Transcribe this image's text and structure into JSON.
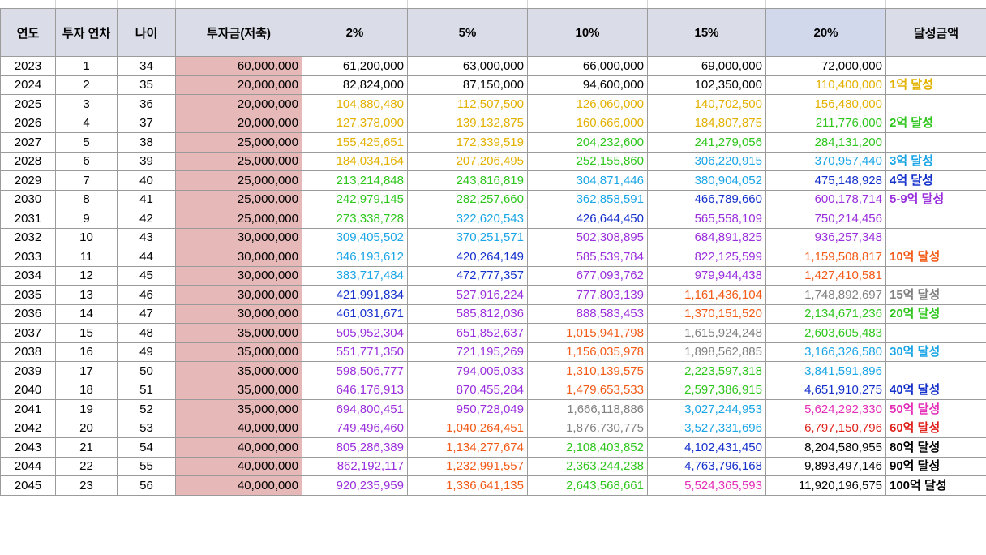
{
  "headers": [
    "연도",
    "투자 연차",
    "나이",
    "투자금(저축)",
    "2%",
    "5%",
    "10%",
    "15%",
    "20%",
    "달성금액"
  ],
  "colors": {
    "black": "#000000",
    "yellow": "#e3b100",
    "green": "#2fc61e",
    "sky": "#1aa5e6",
    "blue": "#1430cc",
    "purple": "#9a2fdc",
    "orange": "#f25a17",
    "gray": "#808080",
    "pink": "#e32fb8",
    "red": "#e0201a",
    "invest_bg": "#e6b8b7",
    "header_bg": "#dadde8"
  },
  "rows": [
    {
      "year": "2023",
      "n": "1",
      "age": "34",
      "inv": "60,000,000",
      "v": [
        "61,200,000",
        "63,000,000",
        "66,000,000",
        "69,000,000",
        "72,000,000"
      ],
      "c": [
        "black",
        "black",
        "black",
        "black",
        "black"
      ],
      "note": "",
      "nc": "black"
    },
    {
      "year": "2024",
      "n": "2",
      "age": "35",
      "inv": "20,000,000",
      "v": [
        "82,824,000",
        "87,150,000",
        "94,600,000",
        "102,350,000",
        "110,400,000"
      ],
      "c": [
        "black",
        "black",
        "black",
        "black",
        "yellow"
      ],
      "note": "1억 달성",
      "nc": "yellow"
    },
    {
      "year": "2025",
      "n": "3",
      "age": "36",
      "inv": "20,000,000",
      "v": [
        "104,880,480",
        "112,507,500",
        "126,060,000",
        "140,702,500",
        "156,480,000"
      ],
      "c": [
        "yellow",
        "yellow",
        "yellow",
        "yellow",
        "yellow"
      ],
      "note": "",
      "nc": "black"
    },
    {
      "year": "2026",
      "n": "4",
      "age": "37",
      "inv": "20,000,000",
      "v": [
        "127,378,090",
        "139,132,875",
        "160,666,000",
        "184,807,875",
        "211,776,000"
      ],
      "c": [
        "yellow",
        "yellow",
        "yellow",
        "yellow",
        "green"
      ],
      "note": "2억 달성",
      "nc": "green"
    },
    {
      "year": "2027",
      "n": "5",
      "age": "38",
      "inv": "25,000,000",
      "v": [
        "155,425,651",
        "172,339,519",
        "204,232,600",
        "241,279,056",
        "284,131,200"
      ],
      "c": [
        "yellow",
        "yellow",
        "green",
        "green",
        "green"
      ],
      "note": "",
      "nc": "black"
    },
    {
      "year": "2028",
      "n": "6",
      "age": "39",
      "inv": "25,000,000",
      "v": [
        "184,034,164",
        "207,206,495",
        "252,155,860",
        "306,220,915",
        "370,957,440"
      ],
      "c": [
        "yellow",
        "yellow",
        "green",
        "sky",
        "sky"
      ],
      "note": "3억 달성",
      "nc": "sky"
    },
    {
      "year": "2029",
      "n": "7",
      "age": "40",
      "inv": "25,000,000",
      "v": [
        "213,214,848",
        "243,816,819",
        "304,871,446",
        "380,904,052",
        "475,148,928"
      ],
      "c": [
        "green",
        "green",
        "sky",
        "sky",
        "blue"
      ],
      "note": "4억 달성",
      "nc": "blue"
    },
    {
      "year": "2030",
      "n": "8",
      "age": "41",
      "inv": "25,000,000",
      "v": [
        "242,979,145",
        "282,257,660",
        "362,858,591",
        "466,789,660",
        "600,178,714"
      ],
      "c": [
        "green",
        "green",
        "sky",
        "blue",
        "purple"
      ],
      "note": "5-9억 달성",
      "nc": "purple"
    },
    {
      "year": "2031",
      "n": "9",
      "age": "42",
      "inv": "25,000,000",
      "v": [
        "273,338,728",
        "322,620,543",
        "426,644,450",
        "565,558,109",
        "750,214,456"
      ],
      "c": [
        "green",
        "sky",
        "blue",
        "purple",
        "purple"
      ],
      "note": "",
      "nc": "black"
    },
    {
      "year": "2032",
      "n": "10",
      "age": "43",
      "inv": "30,000,000",
      "v": [
        "309,405,502",
        "370,251,571",
        "502,308,895",
        "684,891,825",
        "936,257,348"
      ],
      "c": [
        "sky",
        "sky",
        "purple",
        "purple",
        "purple"
      ],
      "note": "",
      "nc": "black"
    },
    {
      "year": "2033",
      "n": "11",
      "age": "44",
      "inv": "30,000,000",
      "v": [
        "346,193,612",
        "420,264,149",
        "585,539,784",
        "822,125,599",
        "1,159,508,817"
      ],
      "c": [
        "sky",
        "blue",
        "purple",
        "purple",
        "orange"
      ],
      "note": "10억 달성",
      "nc": "orange"
    },
    {
      "year": "2034",
      "n": "12",
      "age": "45",
      "inv": "30,000,000",
      "v": [
        "383,717,484",
        "472,777,357",
        "677,093,762",
        "979,944,438",
        "1,427,410,581"
      ],
      "c": [
        "sky",
        "blue",
        "purple",
        "purple",
        "orange"
      ],
      "note": "",
      "nc": "black"
    },
    {
      "year": "2035",
      "n": "13",
      "age": "46",
      "inv": "30,000,000",
      "v": [
        "421,991,834",
        "527,916,224",
        "777,803,139",
        "1,161,436,104",
        "1,748,892,697"
      ],
      "c": [
        "blue",
        "purple",
        "purple",
        "orange",
        "gray"
      ],
      "note": "15억 달성",
      "nc": "gray"
    },
    {
      "year": "2036",
      "n": "14",
      "age": "47",
      "inv": "30,000,000",
      "v": [
        "461,031,671",
        "585,812,036",
        "888,583,453",
        "1,370,151,520",
        "2,134,671,236"
      ],
      "c": [
        "blue",
        "purple",
        "purple",
        "orange",
        "green"
      ],
      "note": "20억 달성",
      "nc": "green"
    },
    {
      "year": "2037",
      "n": "15",
      "age": "48",
      "inv": "35,000,000",
      "v": [
        "505,952,304",
        "651,852,637",
        "1,015,941,798",
        "1,615,924,248",
        "2,603,605,483"
      ],
      "c": [
        "purple",
        "purple",
        "orange",
        "gray",
        "green"
      ],
      "note": "",
      "nc": "black"
    },
    {
      "year": "2038",
      "n": "16",
      "age": "49",
      "inv": "35,000,000",
      "v": [
        "551,771,350",
        "721,195,269",
        "1,156,035,978",
        "1,898,562,885",
        "3,166,326,580"
      ],
      "c": [
        "purple",
        "purple",
        "orange",
        "gray",
        "sky"
      ],
      "note": "30억 달성",
      "nc": "sky"
    },
    {
      "year": "2039",
      "n": "17",
      "age": "50",
      "inv": "35,000,000",
      "v": [
        "598,506,777",
        "794,005,033",
        "1,310,139,575",
        "2,223,597,318",
        "3,841,591,896"
      ],
      "c": [
        "purple",
        "purple",
        "orange",
        "green",
        "sky"
      ],
      "note": "",
      "nc": "black"
    },
    {
      "year": "2040",
      "n": "18",
      "age": "51",
      "inv": "35,000,000",
      "v": [
        "646,176,913",
        "870,455,284",
        "1,479,653,533",
        "2,597,386,915",
        "4,651,910,275"
      ],
      "c": [
        "purple",
        "purple",
        "orange",
        "green",
        "blue"
      ],
      "note": "40억 달성",
      "nc": "blue"
    },
    {
      "year": "2041",
      "n": "19",
      "age": "52",
      "inv": "35,000,000",
      "v": [
        "694,800,451",
        "950,728,049",
        "1,666,118,886",
        "3,027,244,953",
        "5,624,292,330"
      ],
      "c": [
        "purple",
        "purple",
        "gray",
        "sky",
        "pink"
      ],
      "note": "50억 달성",
      "nc": "pink"
    },
    {
      "year": "2042",
      "n": "20",
      "age": "53",
      "inv": "40,000,000",
      "v": [
        "749,496,460",
        "1,040,264,451",
        "1,876,730,775",
        "3,527,331,696",
        "6,797,150,796"
      ],
      "c": [
        "purple",
        "orange",
        "gray",
        "sky",
        "red"
      ],
      "note": "60억 달성",
      "nc": "red"
    },
    {
      "year": "2043",
      "n": "21",
      "age": "54",
      "inv": "40,000,000",
      "v": [
        "805,286,389",
        "1,134,277,674",
        "2,108,403,852",
        "4,102,431,450",
        "8,204,580,955"
      ],
      "c": [
        "purple",
        "orange",
        "green",
        "blue",
        "black"
      ],
      "note": "80억 달성",
      "nc": "black"
    },
    {
      "year": "2044",
      "n": "22",
      "age": "55",
      "inv": "40,000,000",
      "v": [
        "862,192,117",
        "1,232,991,557",
        "2,363,244,238",
        "4,763,796,168",
        "9,893,497,146"
      ],
      "c": [
        "purple",
        "orange",
        "green",
        "blue",
        "black"
      ],
      "note": "90억 달성",
      "nc": "black"
    },
    {
      "year": "2045",
      "n": "23",
      "age": "56",
      "inv": "40,000,000",
      "v": [
        "920,235,959",
        "1,336,641,135",
        "2,643,568,661",
        "5,524,365,593",
        "11,920,196,575"
      ],
      "c": [
        "purple",
        "orange",
        "green",
        "pink",
        "black"
      ],
      "note": "100억 달성",
      "nc": "black"
    }
  ]
}
